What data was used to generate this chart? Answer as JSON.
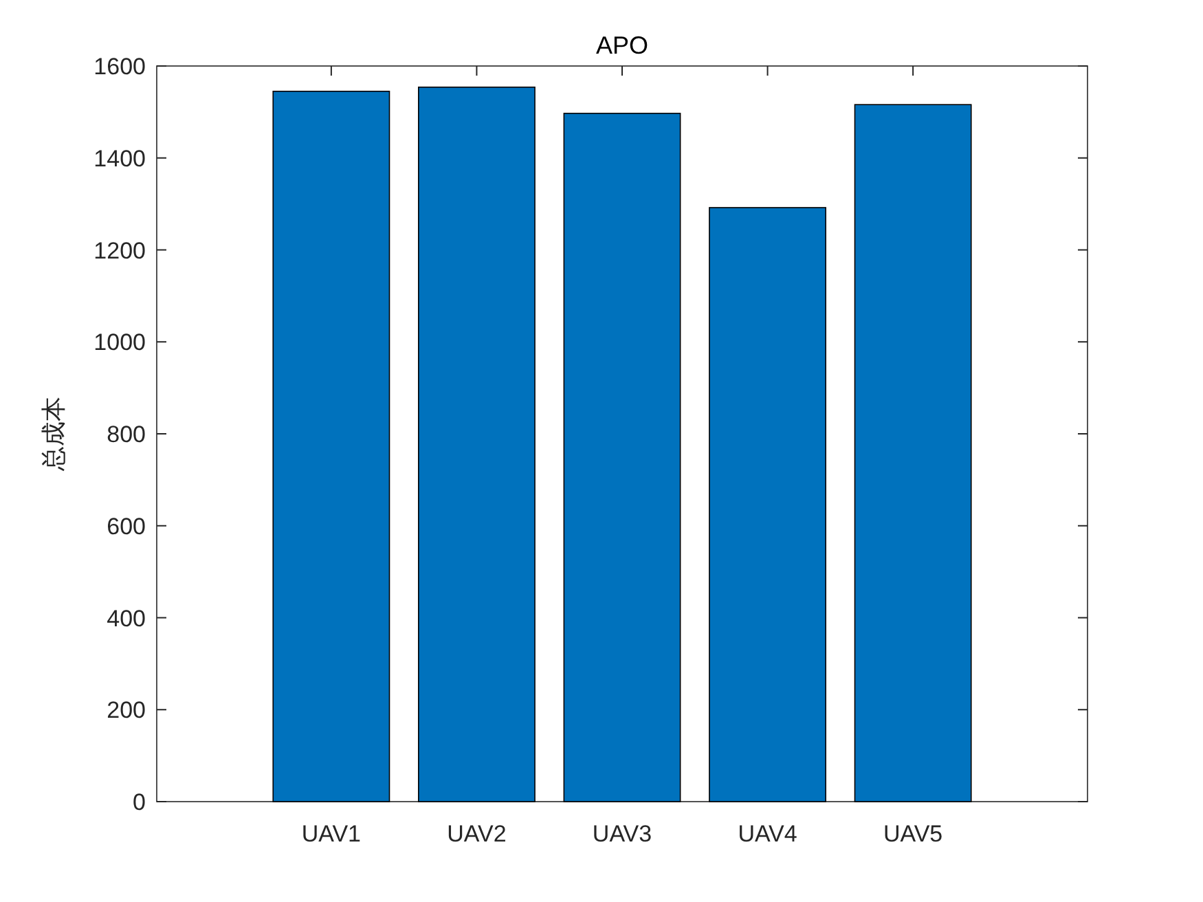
{
  "chart_data": {
    "type": "bar",
    "title": "APO",
    "ylabel": "总成本",
    "categories": [
      "UAV1",
      "UAV2",
      "UAV3",
      "UAV4",
      "UAV5"
    ],
    "values": [
      1545,
      1554,
      1497,
      1292,
      1516
    ],
    "color": "#0072bd",
    "ylim": [
      0,
      1600
    ],
    "yticks": [
      0,
      200,
      400,
      600,
      800,
      1000,
      1200,
      1400,
      1600
    ],
    "grid": false
  }
}
